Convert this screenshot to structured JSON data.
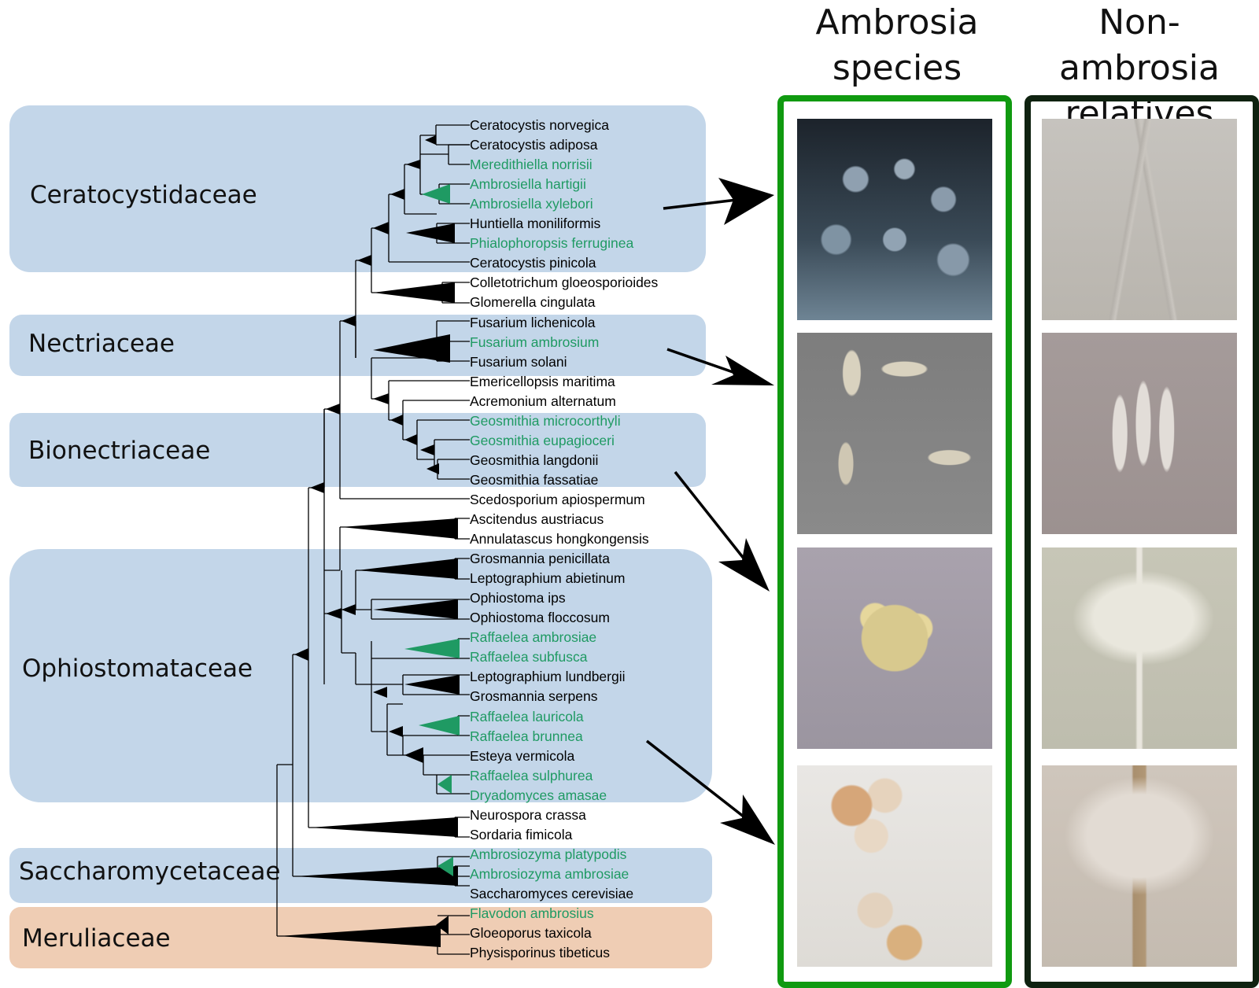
{
  "headers": {
    "ambrosia": [
      "Ambrosia",
      "species"
    ],
    "non_ambrosia": [
      "Non-ambrosia",
      "relatives"
    ]
  },
  "colors": {
    "band_blue": "#c3d6e9",
    "band_orange": "#efcdb4",
    "ambrosia_green": "#1f9a63",
    "ambrosia_frame": "#109a10",
    "relatives_frame": "#0f2210",
    "clade_black": "#000000"
  },
  "families": [
    {
      "name": "Ceratocystidaceae",
      "color": "blue"
    },
    {
      "name": "Nectriaceae",
      "color": "blue"
    },
    {
      "name": "Bionectriaceae",
      "color": "blue"
    },
    {
      "name": "Ophiostomataceae",
      "color": "blue"
    },
    {
      "name": "Saccharomycetaceae",
      "color": "blue"
    },
    {
      "name": "Meruliaceae",
      "color": "orange"
    }
  ],
  "taxa": [
    {
      "name": "Ceratocystis norvegica",
      "ambrosia": false
    },
    {
      "name": "Ceratocystis adiposa",
      "ambrosia": false
    },
    {
      "name": "Meredithiella norrisii",
      "ambrosia": true
    },
    {
      "name": "Ambrosiella hartigii",
      "ambrosia": true
    },
    {
      "name": "Ambrosiella xylebori",
      "ambrosia": true
    },
    {
      "name": "Huntiella moniliformis",
      "ambrosia": false
    },
    {
      "name": "Phialophoropsis ferruginea",
      "ambrosia": true
    },
    {
      "name": "Ceratocystis pinicola",
      "ambrosia": false
    },
    {
      "name": "Colletotrichum gloeosporioides",
      "ambrosia": false
    },
    {
      "name": "Glomerella cingulata",
      "ambrosia": false
    },
    {
      "name": "Fusarium lichenicola",
      "ambrosia": false
    },
    {
      "name": "Fusarium ambrosium",
      "ambrosia": true
    },
    {
      "name": "Fusarium solani",
      "ambrosia": false
    },
    {
      "name": "Emericellopsis maritima",
      "ambrosia": false
    },
    {
      "name": "Acremonium alternatum",
      "ambrosia": false
    },
    {
      "name": "Geosmithia microcorthyli",
      "ambrosia": true
    },
    {
      "name": "Geosmithia eupagioceri",
      "ambrosia": true
    },
    {
      "name": "Geosmithia langdonii",
      "ambrosia": false
    },
    {
      "name": "Geosmithia fassatiae",
      "ambrosia": false
    },
    {
      "name": "Scedosporium apiospermum",
      "ambrosia": false
    },
    {
      "name": "Ascitendus austriacus",
      "ambrosia": false
    },
    {
      "name": "Annulatascus hongkongensis",
      "ambrosia": false
    },
    {
      "name": "Grosmannia penicillata",
      "ambrosia": false
    },
    {
      "name": "Leptographium abietinum",
      "ambrosia": false
    },
    {
      "name": "Ophiostoma ips",
      "ambrosia": false
    },
    {
      "name": "Ophiostoma floccosum",
      "ambrosia": false
    },
    {
      "name": "Raffaelea ambrosiae",
      "ambrosia": true
    },
    {
      "name": "Raffaelea subfusca",
      "ambrosia": true
    },
    {
      "name": "Leptographium lundbergii",
      "ambrosia": false
    },
    {
      "name": "Grosmannia serpens",
      "ambrosia": false
    },
    {
      "name": "Raffaelea lauricola",
      "ambrosia": true
    },
    {
      "name": "Raffaelea brunnea",
      "ambrosia": true
    },
    {
      "name": "Esteya vermicola",
      "ambrosia": false
    },
    {
      "name": "Raffaelea sulphurea",
      "ambrosia": true
    },
    {
      "name": "Dryadomyces amasae",
      "ambrosia": true
    },
    {
      "name": "Neurospora crassa",
      "ambrosia": false
    },
    {
      "name": "Sordaria fimicola",
      "ambrosia": false
    },
    {
      "name": "Ambrosiozyma platypodis",
      "ambrosia": true
    },
    {
      "name": "Ambrosiozyma ambrosiae",
      "ambrosia": true
    },
    {
      "name": "Saccharomyces cerevisiae",
      "ambrosia": false
    },
    {
      "name": "Flavodon ambrosius",
      "ambrosia": true
    },
    {
      "name": "Gloeoporus taxicola",
      "ambrosia": false
    },
    {
      "name": "Physisporinus tibeticus",
      "ambrosia": false
    }
  ]
}
